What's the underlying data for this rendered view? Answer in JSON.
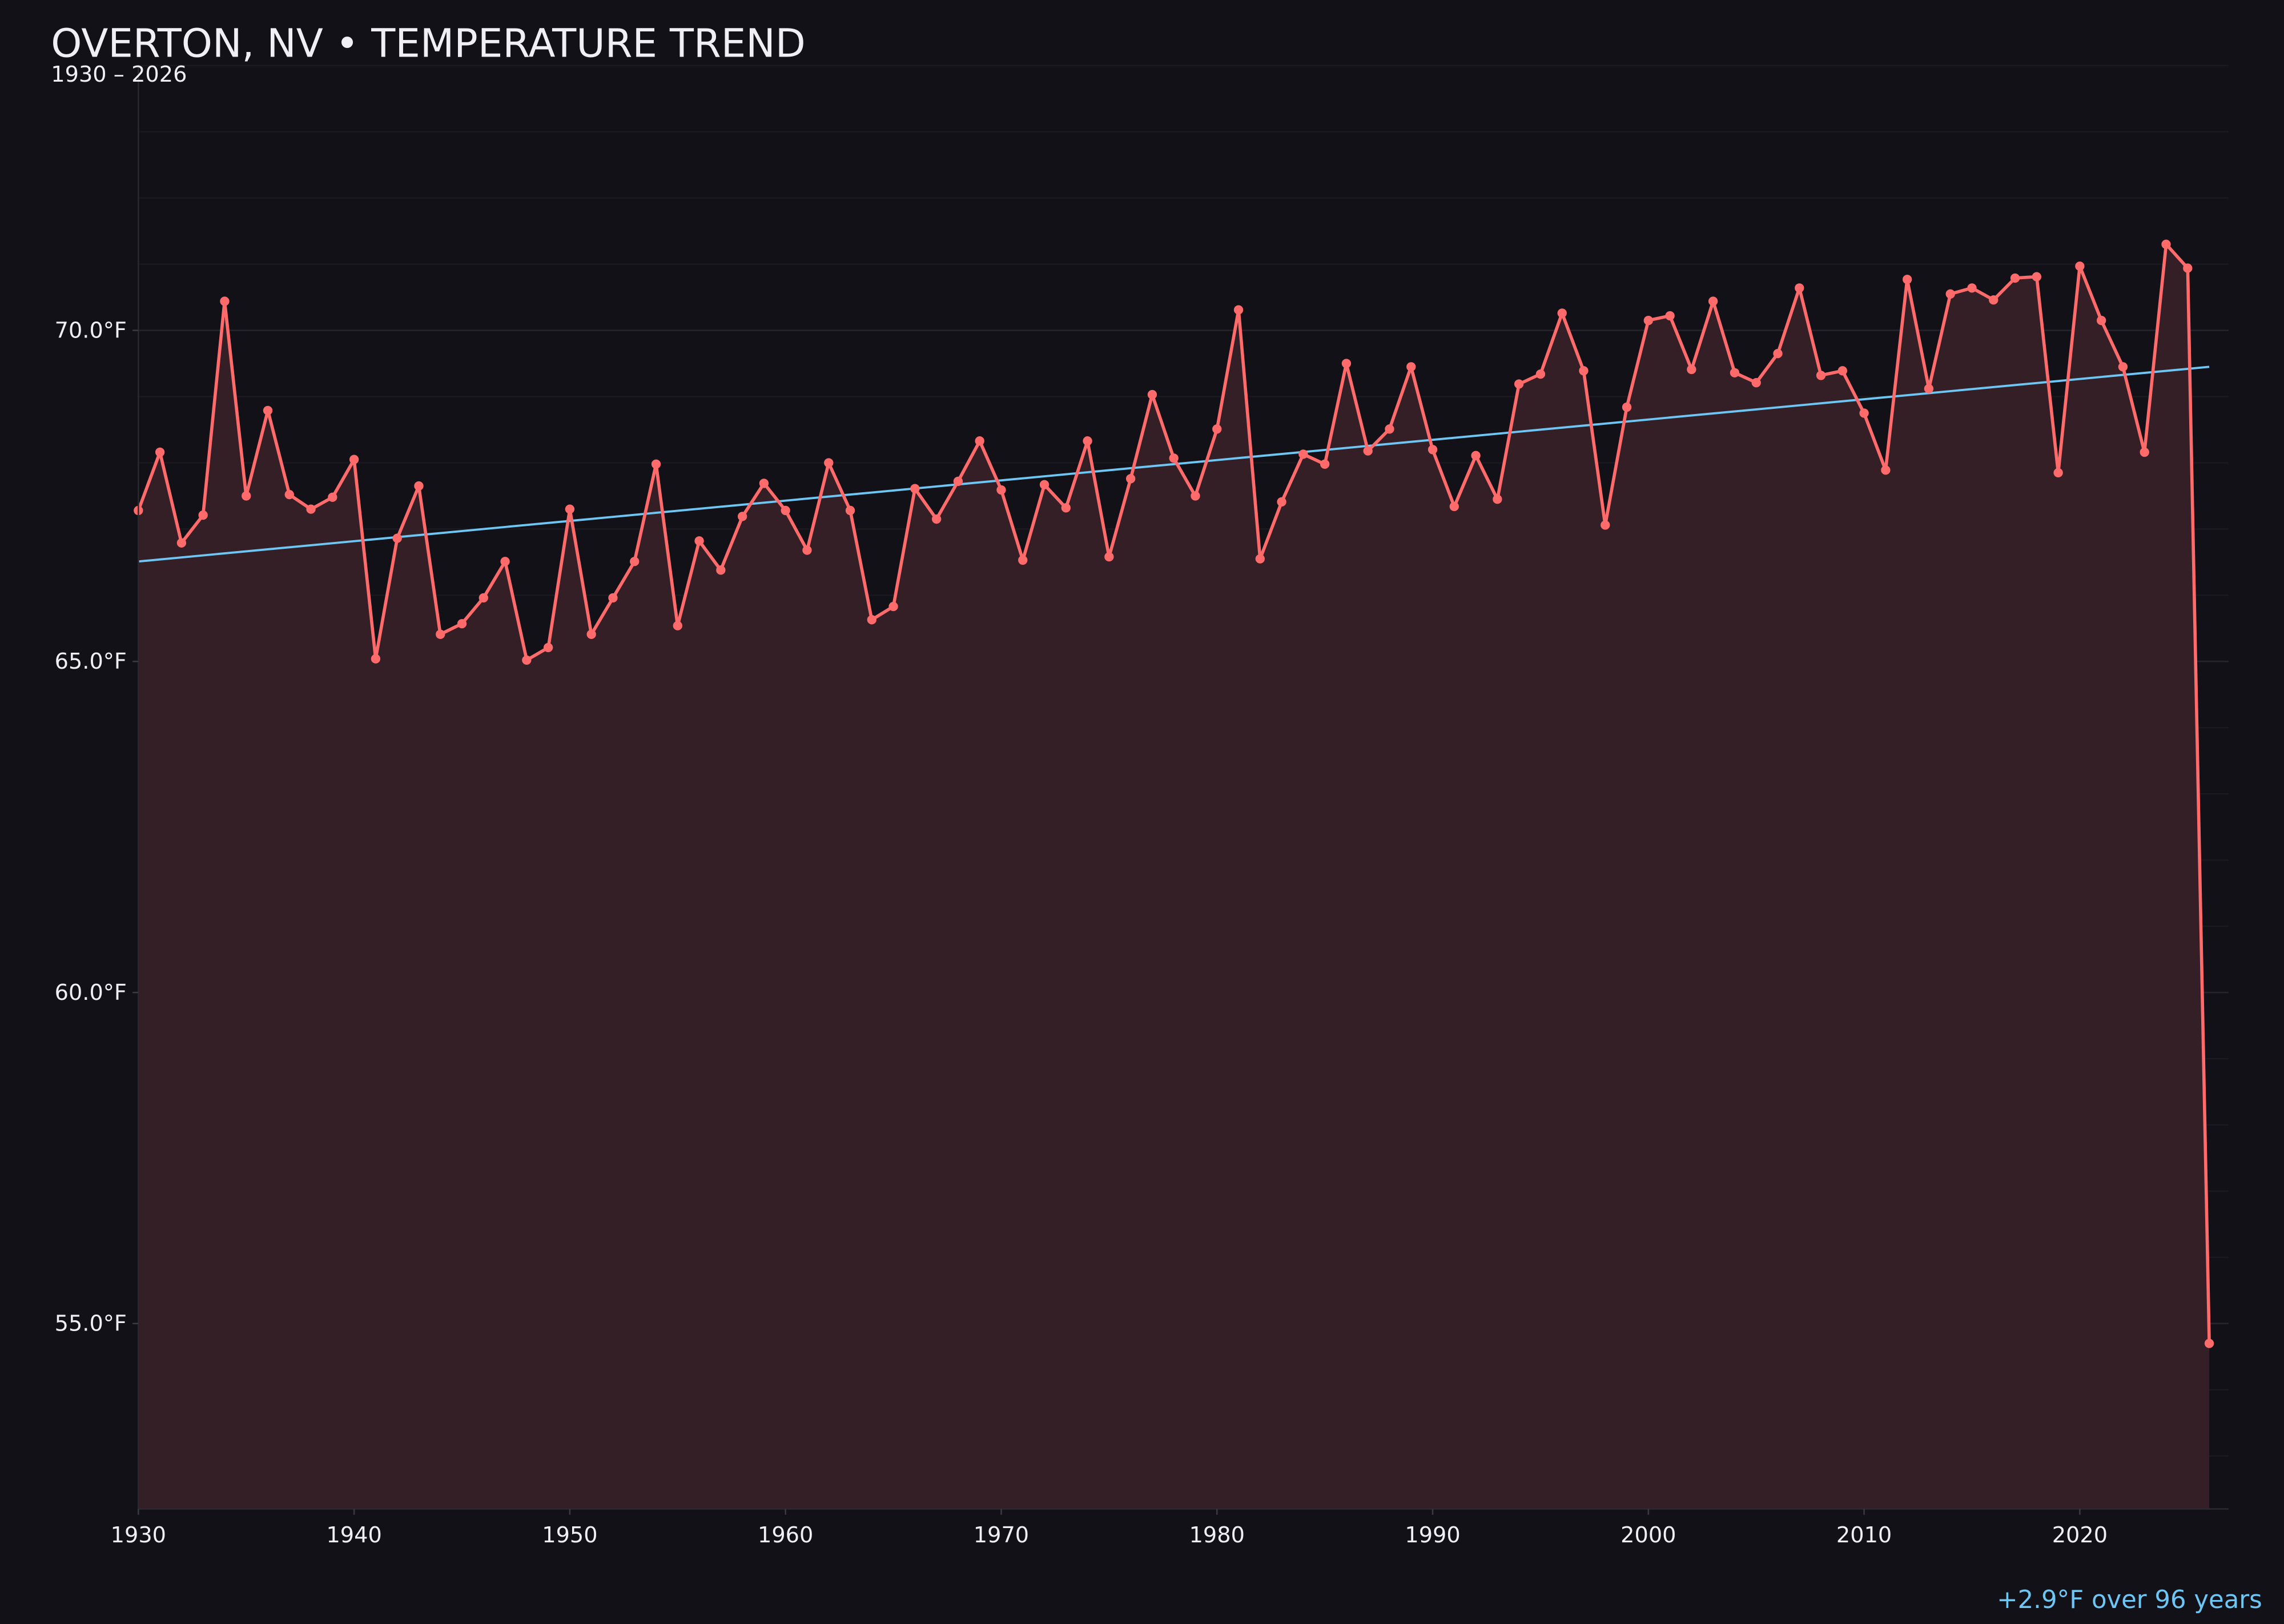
{
  "chart_data": {
    "type": "line",
    "title": "OVERTON, NV • TEMPERATURE TREND",
    "subtitle": "1930 – 2026",
    "xlabel": "",
    "ylabel": "",
    "xlim": [
      1930,
      2026.9
    ],
    "ylim": [
      52.2,
      74.0
    ],
    "x_ticks": [
      "1930",
      "1940",
      "1950",
      "1960",
      "1970",
      "1980",
      "1990",
      "2000",
      "2010",
      "2020"
    ],
    "y_ticks": [
      "55.0°F",
      "60.0°F",
      "65.0°F",
      "70.0°F"
    ],
    "y_tick_values": [
      55,
      60,
      65,
      70
    ],
    "grid": true,
    "legend": "none",
    "x": [
      1930,
      1931,
      1932,
      1933,
      1934,
      1935,
      1936,
      1937,
      1938,
      1939,
      1940,
      1941,
      1942,
      1943,
      1944,
      1945,
      1946,
      1947,
      1948,
      1949,
      1950,
      1951,
      1952,
      1953,
      1954,
      1955,
      1956,
      1957,
      1958,
      1959,
      1960,
      1961,
      1962,
      1963,
      1964,
      1965,
      1966,
      1967,
      1968,
      1969,
      1970,
      1971,
      1972,
      1973,
      1974,
      1975,
      1976,
      1977,
      1978,
      1979,
      1980,
      1981,
      1982,
      1983,
      1984,
      1985,
      1986,
      1987,
      1988,
      1989,
      1990,
      1991,
      1992,
      1993,
      1994,
      1995,
      1996,
      1997,
      1998,
      1999,
      2000,
      2001,
      2002,
      2003,
      2004,
      2005,
      2006,
      2007,
      2008,
      2009,
      2010,
      2011,
      2012,
      2013,
      2014,
      2015,
      2016,
      2017,
      2018,
      2019,
      2020,
      2021,
      2022,
      2023,
      2024,
      2025,
      2026
    ],
    "series": [
      {
        "values": [
          67.28,
          68.16,
          66.79,
          67.21,
          70.44,
          67.5,
          68.79,
          67.52,
          67.3,
          67.48,
          68.05,
          65.04,
          66.86,
          67.65,
          65.41,
          65.57,
          65.96,
          66.51,
          65.02,
          65.21,
          67.3,
          65.41,
          65.96,
          66.51,
          67.98,
          65.54,
          66.82,
          66.38,
          67.19,
          67.69,
          67.28,
          66.68,
          68.0,
          67.28,
          65.63,
          65.83,
          67.61,
          67.15,
          67.72,
          68.33,
          67.59,
          66.53,
          67.67,
          67.32,
          68.33,
          66.58,
          67.76,
          69.03,
          68.07,
          67.5,
          68.51,
          70.31,
          66.55,
          67.41,
          68.13,
          67.98,
          69.5,
          68.18,
          68.51,
          69.45,
          68.2,
          67.34,
          68.11,
          67.45,
          69.19,
          69.34,
          70.26,
          69.39,
          67.06,
          68.84,
          70.15,
          70.22,
          69.41,
          70.44,
          69.36,
          69.21,
          69.65,
          70.64,
          69.32,
          69.39,
          68.75,
          67.89,
          70.77,
          69.12,
          70.55,
          70.64,
          70.46,
          70.79,
          70.81,
          67.85,
          70.97,
          70.15,
          69.45,
          68.16,
          71.3,
          70.94,
          54.7
        ],
        "color": "#ff6b6b"
      }
    ],
    "trend": {
      "x": [
        1930,
        2026
      ],
      "y": [
        66.51,
        69.45
      ],
      "color": "#6ec6f5"
    },
    "annotation": "+2.9°F over 96 years",
    "colors": {
      "background": "#121118",
      "fill": "#351f26",
      "text": "#f0eff5",
      "annotation": "#6ec6f5"
    }
  }
}
